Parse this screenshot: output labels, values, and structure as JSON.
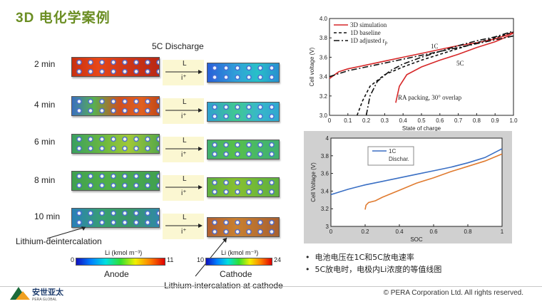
{
  "slide": {
    "title": "3D 电化学案例",
    "sim_title": "5C Discharge",
    "times": [
      "2 min",
      "4 min",
      "6 min",
      "8 min",
      "10 min"
    ],
    "arrow_L": "L",
    "arrow_i": "i⁺",
    "annot_deintercalation": "Lithium-deintercalation",
    "annot_intercalation": "Lithium-intercalation at cathode",
    "anode_label": "Anode",
    "cathode_label": "Cathode",
    "anode_scale": {
      "min": "0",
      "max": "11",
      "unit": "Li (kmol m⁻³)"
    },
    "cathode_scale": {
      "min": "10",
      "max": "24",
      "unit": "Li (kmol m⁻³)"
    },
    "bullets": [
      "电池电压在1C和5C放电速率",
      "5C放电时，电极内Li浓度的等值线图"
    ],
    "copyright": "© PERA Corporation Ltd. All rights reserved.",
    "logo_text": "安世亚太",
    "logo_sub": "PERA GLOBAL"
  },
  "chart_data": [
    {
      "type": "line",
      "xlabel": "State of charge",
      "ylabel": "Cell voltage (V)",
      "xlim": [
        0,
        1.0
      ],
      "ylim": [
        3.0,
        4.0
      ],
      "xticks": [
        "0",
        "0.1",
        "0.2",
        "0.3",
        "0.4",
        "0.5",
        "0.6",
        "0.7",
        "0.8",
        "0.9",
        "1.0"
      ],
      "yticks": [
        "3.0",
        "3.2",
        "3.4",
        "3.6",
        "3.8",
        "4.0"
      ],
      "legend": [
        "3D simulation",
        "1D baseline",
        "1D adjusted r"
      ],
      "legend_sub": "p",
      "annotations": [
        "1C",
        "5C",
        "RA packing, 30° overlap"
      ],
      "series": [
        {
          "name": "3D simulation",
          "color": "#d62728",
          "x": [
            0.0,
            0.05,
            0.1,
            0.2,
            0.3,
            0.4,
            0.5,
            0.6,
            0.7,
            0.8,
            0.9,
            0.95,
            1.0
          ],
          "y": [
            3.38,
            3.45,
            3.48,
            3.52,
            3.56,
            3.6,
            3.64,
            3.68,
            3.72,
            3.75,
            3.79,
            3.82,
            3.86
          ]
        },
        {
          "name": "3D simulation",
          "color": "#d62728",
          "x": [
            0.36,
            0.38,
            0.42,
            0.5,
            0.6,
            0.7,
            0.8,
            0.9,
            0.95,
            1.0
          ],
          "y": [
            3.13,
            3.3,
            3.42,
            3.5,
            3.57,
            3.63,
            3.7,
            3.76,
            3.8,
            3.85
          ]
        },
        {
          "name": "1D baseline",
          "color": "#111111",
          "dash": "4,3",
          "x": [
            0.15,
            0.18,
            0.22,
            0.3,
            0.4,
            0.5,
            0.6,
            0.7,
            0.8,
            0.9,
            1.0
          ],
          "y": [
            3.0,
            3.15,
            3.3,
            3.42,
            3.5,
            3.57,
            3.63,
            3.69,
            3.75,
            3.8,
            3.86
          ]
        },
        {
          "name": "1D adjusted r",
          "color": "#111111",
          "dash": "8,3,2,3",
          "x": [
            0.2,
            0.22,
            0.26,
            0.33,
            0.4,
            0.5,
            0.6,
            0.7,
            0.8,
            0.9,
            1.0
          ],
          "y": [
            3.0,
            3.2,
            3.35,
            3.46,
            3.53,
            3.6,
            3.66,
            3.72,
            3.77,
            3.81,
            3.87
          ]
        },
        {
          "name": "1D adjusted r",
          "color": "#111111",
          "dash": "8,3,2,3",
          "x": [
            0.0,
            0.1,
            0.2,
            0.3,
            0.4,
            0.5,
            0.6,
            0.7,
            0.8,
            0.9,
            1.0
          ],
          "y": [
            3.4,
            3.46,
            3.5,
            3.54,
            3.58,
            3.62,
            3.66,
            3.7,
            3.74,
            3.78,
            3.82
          ]
        }
      ]
    },
    {
      "type": "line",
      "xlabel": "SOC",
      "ylabel": "Cell Voltage (V)",
      "xlim": [
        0,
        1
      ],
      "ylim": [
        3,
        4
      ],
      "xticks": [
        "0",
        "0.2",
        "0.4",
        "0.6",
        "0.8",
        "1"
      ],
      "yticks": [
        "3",
        "3.2",
        "3.4",
        "3.6",
        "3.8",
        "4"
      ],
      "legend": [
        "1C",
        "Dischar."
      ],
      "series": [
        {
          "name": "1C",
          "color": "#3a6fc4",
          "x": [
            0.0,
            0.1,
            0.2,
            0.3,
            0.4,
            0.5,
            0.6,
            0.7,
            0.8,
            0.9,
            1.0
          ],
          "y": [
            3.36,
            3.42,
            3.47,
            3.51,
            3.55,
            3.59,
            3.63,
            3.67,
            3.72,
            3.78,
            3.88
          ]
        },
        {
          "name": "Dischar.",
          "color": "#e07b30",
          "x": [
            0.2,
            0.205,
            0.22,
            0.26,
            0.3,
            0.4,
            0.5,
            0.6,
            0.7,
            0.8,
            0.9,
            1.0
          ],
          "y": [
            3.19,
            3.24,
            3.27,
            3.29,
            3.33,
            3.41,
            3.49,
            3.55,
            3.62,
            3.68,
            3.74,
            3.82
          ]
        }
      ]
    }
  ]
}
